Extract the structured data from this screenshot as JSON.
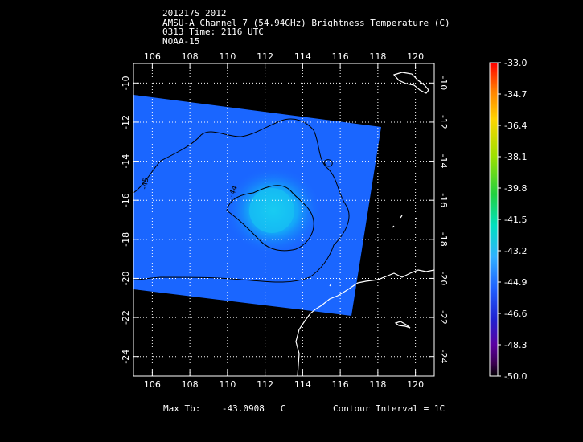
{
  "header": {
    "line1": "201217S 2012",
    "line2": "AMSU-A Channel 7 (54.94GHz) Brightness Temperature (C)",
    "line3": "0313 Time: 2116 UTC",
    "line4": "NOAA-15"
  },
  "footer": {
    "max_tb_label": "Max Tb:",
    "max_tb_value": "-43.0908",
    "max_tb_unit": "C",
    "contour_interval": "Contour Interval = 1C"
  },
  "colors": {
    "swath": "#1a66ff",
    "warm_center": "#18c8f0",
    "land_outline": "#ffffff",
    "grid": "#ffffff",
    "colorbar": [
      "#ff0000",
      "#ff7f00",
      "#ffd400",
      "#9be000",
      "#20d040",
      "#00e0c0",
      "#30b0ff",
      "#2060ff",
      "#2020d0",
      "#5a00a0",
      "#3a0050",
      "#000000"
    ]
  },
  "chart_data": {
    "type": "heatmap",
    "title": "AMSU-A Channel 7 (54.94GHz) Brightness Temperature (C)",
    "x_ticks": [
      "106",
      "108",
      "110",
      "112",
      "114",
      "116",
      "118",
      "120"
    ],
    "y_ticks": [
      "-10",
      "-12",
      "-14",
      "-16",
      "-18",
      "-20",
      "-22",
      "-24"
    ],
    "xlim": [
      105,
      121
    ],
    "ylim": [
      -25,
      -9
    ],
    "grid": true,
    "colorbar": {
      "min": -50.0,
      "max": -33.0,
      "labels": [
        "-33.0",
        "-34.7",
        "-36.4",
        "-38.1",
        "-39.8",
        "-41.5",
        "-43.2",
        "-44.9",
        "-46.6",
        "-48.3",
        "-50.0"
      ]
    },
    "contour_labels": [
      "-45",
      "-44"
    ],
    "max_tb": -43.0908,
    "contour_interval_c": 1
  }
}
